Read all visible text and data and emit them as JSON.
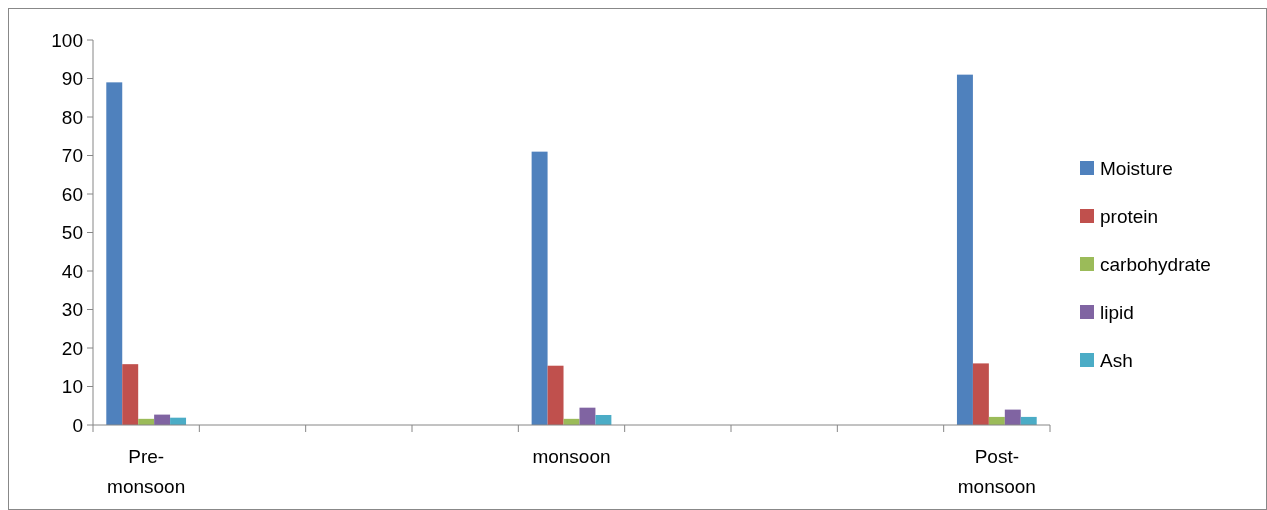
{
  "chart_data": {
    "type": "bar",
    "categories": [
      "Pre-monsoon",
      null,
      null,
      null,
      "monsoon",
      null,
      null,
      null,
      "Post-monsoon"
    ],
    "series": [
      {
        "name": "Moisture",
        "color": "#4f81bd",
        "values": [
          89,
          null,
          null,
          null,
          71,
          null,
          null,
          null,
          91
        ]
      },
      {
        "name": "protein",
        "color": "#c0504d",
        "values": [
          15.8,
          null,
          null,
          null,
          15.4,
          null,
          null,
          null,
          16
        ]
      },
      {
        "name": "carbohydrate",
        "color": "#9bbb59",
        "values": [
          1.6,
          null,
          null,
          null,
          1.6,
          null,
          null,
          null,
          2.1
        ]
      },
      {
        "name": "lipid",
        "color": "#8064a2",
        "values": [
          2.7,
          null,
          null,
          null,
          4.5,
          null,
          null,
          null,
          4
        ]
      },
      {
        "name": "Ash",
        "color": "#4bacc6",
        "values": [
          1.9,
          null,
          null,
          null,
          2.6,
          null,
          null,
          null,
          2.1
        ]
      }
    ],
    "ylim": [
      0,
      100
    ],
    "yticks": [
      0,
      10,
      20,
      30,
      40,
      50,
      60,
      70,
      80,
      90,
      100
    ],
    "grid": false,
    "legend": "right"
  }
}
